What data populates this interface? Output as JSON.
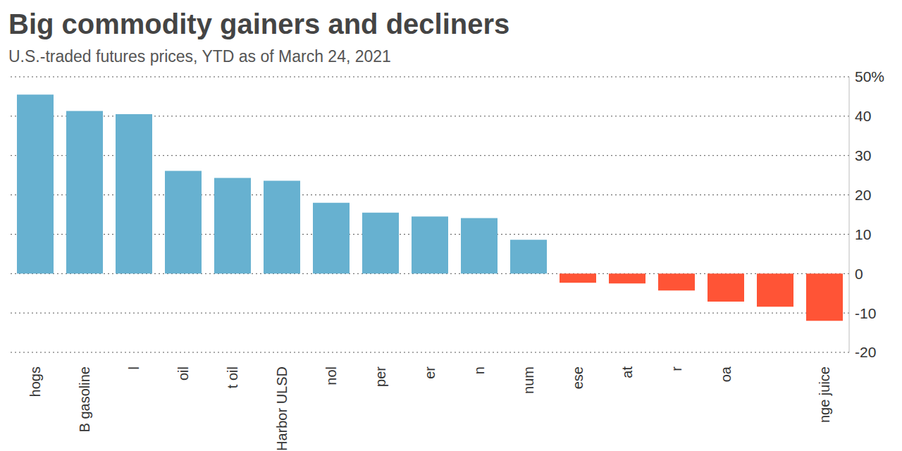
{
  "chart_data": {
    "type": "bar",
    "title": "Big commodity gainers and decliners",
    "subtitle": "U.S.-traded futures prices, YTD as of March 24, 2021",
    "categories": [
      "hogs",
      "B gasoline",
      "l",
      "oil",
      "t oil",
      "Harbor ULSD",
      "nol",
      "per",
      "er",
      "n",
      "num",
      "ese",
      "at",
      "r",
      "oa",
      null,
      "nge juice"
    ],
    "values": [
      45.5,
      41.3,
      40.5,
      26.1,
      24.3,
      23.6,
      18.0,
      15.5,
      14.5,
      14.1,
      8.6,
      -2.3,
      -2.5,
      -4.3,
      -7.1,
      -8.4,
      -12.0
    ],
    "colors": [
      "#67b1d0",
      "#67b1d0",
      "#67b1d0",
      "#67b1d0",
      "#67b1d0",
      "#67b1d0",
      "#67b1d0",
      "#67b1d0",
      "#67b1d0",
      "#67b1d0",
      "#67b1d0",
      "#ff5436",
      "#ff5436",
      "#ff5436",
      "#ff5436",
      "#ff5436",
      "#ff5436"
    ],
    "ylim": [
      -20,
      50
    ],
    "yticks": [
      -20,
      -10,
      0,
      10,
      20,
      30,
      {
        "value": 40,
        "label": "40"
      },
      {
        "value": 50,
        "label": "50%"
      }
    ],
    "grid": true
  }
}
